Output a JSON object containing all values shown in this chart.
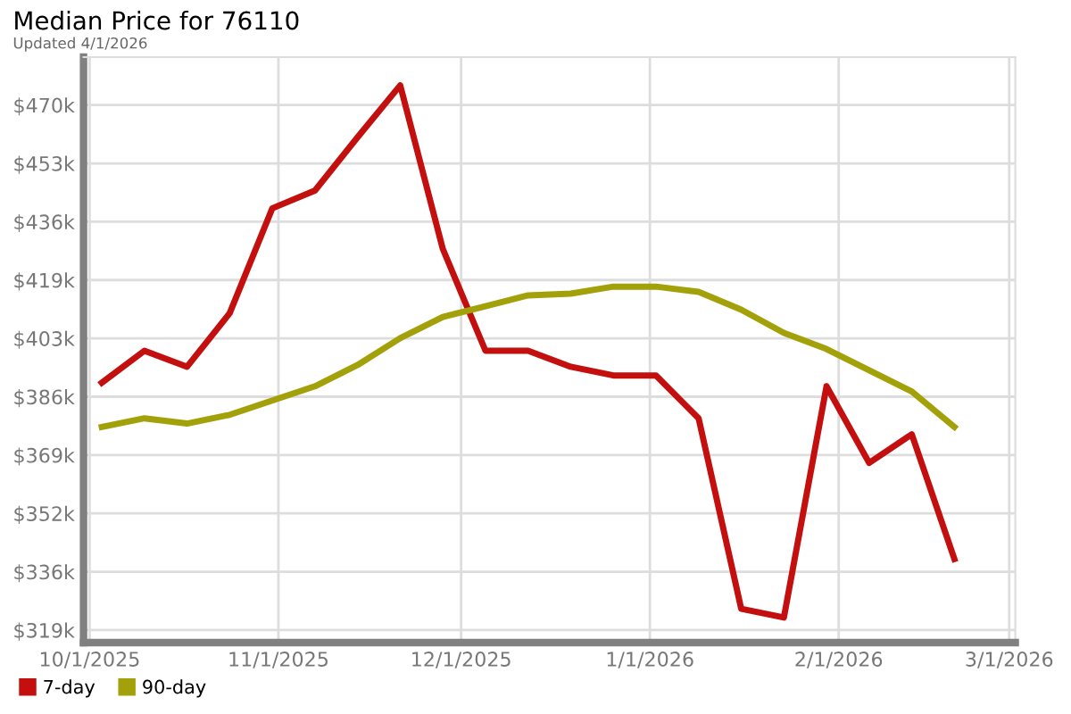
{
  "chart_data": {
    "type": "line",
    "title": "Median Price for 76110",
    "subtitle": "Updated 4/1/2026",
    "x": [
      "2025-10-03",
      "2025-10-10",
      "2025-10-17",
      "2025-10-24",
      "2025-10-31",
      "2025-11-07",
      "2025-11-14",
      "2025-11-21",
      "2025-11-28",
      "2025-12-05",
      "2025-12-12",
      "2025-12-19",
      "2025-12-26",
      "2026-01-02",
      "2026-01-09",
      "2026-01-16",
      "2026-01-23",
      "2026-01-30",
      "2026-02-06",
      "2026-02-13",
      "2026-02-20"
    ],
    "series": [
      {
        "name": "7-day",
        "color": "#c40f0f",
        "values": [
          389.9,
          399.1,
          394.5,
          409.9,
          440.0,
          445.1,
          460.4,
          475.3,
          428.3,
          399.1,
          399.1,
          394.5,
          392.0,
          392.0,
          379.7,
          325.0,
          322.5,
          388.9,
          366.9,
          375.1,
          339.3
        ]
      },
      {
        "name": "90-day",
        "color": "#a3a10a",
        "values": [
          377.2,
          379.7,
          378.2,
          380.7,
          384.8,
          388.9,
          395.0,
          402.7,
          408.8,
          411.9,
          415.0,
          415.5,
          417.5,
          417.5,
          416.0,
          410.9,
          404.2,
          399.6,
          393.5,
          387.4,
          377.2
        ]
      }
    ],
    "xlim": [
      "2025-09-30",
      "2026-03-02"
    ],
    "xticks": [
      {
        "value": "2025-10-01",
        "label": "10/1/2025"
      },
      {
        "value": "2025-11-01",
        "label": "11/1/2025"
      },
      {
        "value": "2025-12-01",
        "label": "12/1/2025"
      },
      {
        "value": "2026-01-01",
        "label": "1/1/2026"
      },
      {
        "value": "2026-02-01",
        "label": "2/1/2026"
      },
      {
        "value": "2026-03-01",
        "label": "3/1/2026"
      }
    ],
    "ylim": [
      315.3,
      483.4
    ],
    "yticks": [
      {
        "value": 318.9,
        "label": "$319k"
      },
      {
        "value": 335.65,
        "label": "$336k"
      },
      {
        "value": 352.4,
        "label": "$352k"
      },
      {
        "value": 369.15,
        "label": "$369k"
      },
      {
        "value": 385.9,
        "label": "$386k"
      },
      {
        "value": 402.65,
        "label": "$403k"
      },
      {
        "value": 419.4,
        "label": "$419k"
      },
      {
        "value": 436.15,
        "label": "$436k"
      },
      {
        "value": 452.9,
        "label": "$453k"
      },
      {
        "value": 469.65,
        "label": "$470k"
      }
    ],
    "grid": true,
    "legend": "bottom left",
    "marker": "none",
    "line_style": "solid"
  }
}
